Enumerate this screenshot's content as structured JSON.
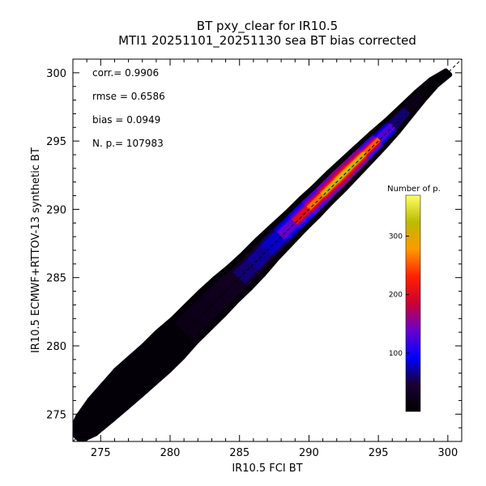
{
  "chart_data": {
    "type": "heatmap",
    "title": "BT pxy_clear for IR10.5",
    "subtitle": "MTI1 20251101_20251130 sea BT bias corrected",
    "xlabel": "IR10.5 FCI BT",
    "ylabel": "IR10.5 ECMWF+RTTOV-13 synthetic BT",
    "xlim": [
      273,
      301
    ],
    "ylim": [
      273,
      301
    ],
    "x_ticks": [
      275,
      280,
      285,
      290,
      295,
      300
    ],
    "y_ticks": [
      275,
      280,
      285,
      290,
      295,
      300
    ],
    "grid": false,
    "identity_line": true,
    "stats": [
      {
        "label": "corr.=",
        "value": "0.9906"
      },
      {
        "label": "rmse =",
        "value": "0.6586"
      },
      {
        "label": "bias =",
        "value": "0.0949"
      },
      {
        "label": "N. p.=",
        "value": "107983"
      }
    ],
    "colorbar": {
      "title": "Number of p.",
      "range": [
        0,
        370
      ],
      "ticks": [
        100,
        200,
        300
      ],
      "colors": [
        "#000000",
        "#1a0033",
        "#0000ff",
        "#6a00cc",
        "#cc0033",
        "#ff2200",
        "#ff9900",
        "#bbbb00",
        "#ffff66"
      ]
    },
    "density_ridge": {
      "x": [
        273.2,
        274,
        275,
        276,
        277,
        278,
        279,
        280,
        281,
        282,
        283,
        284,
        285,
        286,
        287,
        288,
        289,
        290,
        291,
        292,
        293,
        294,
        295,
        296,
        297,
        298,
        299,
        300
      ],
      "y": [
        273.4,
        274.2,
        275.3,
        276.3,
        277.3,
        278.2,
        279.1,
        280.1,
        281.1,
        282.1,
        283.1,
        284.1,
        285.0,
        286.0,
        287.1,
        288.1,
        289.1,
        290.1,
        291.1,
        292.1,
        293.1,
        294.1,
        295.1,
        296.1,
        297.2,
        298.3,
        299.3,
        300.0
      ],
      "count": [
        2,
        3,
        4,
        6,
        8,
        10,
        12,
        16,
        22,
        28,
        36,
        48,
        62,
        80,
        110,
        160,
        220,
        280,
        330,
        370,
        360,
        340,
        260,
        140,
        60,
        25,
        10,
        4
      ],
      "spread": [
        0.5,
        0.9,
        1.1,
        1.2,
        1.3,
        1.3,
        1.3,
        1.3,
        1.2,
        1.2,
        1.2,
        1.15,
        1.1,
        1.05,
        1.0,
        0.95,
        0.9,
        0.9,
        0.85,
        0.85,
        0.8,
        0.75,
        0.7,
        0.6,
        0.5,
        0.4,
        0.3,
        0.2
      ]
    }
  }
}
